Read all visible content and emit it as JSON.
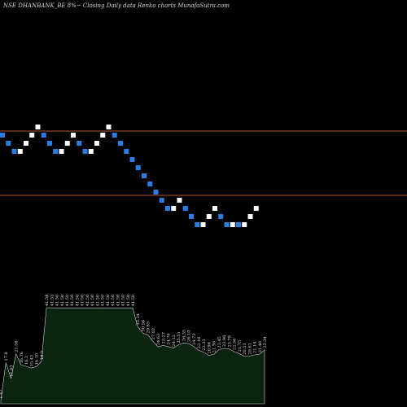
{
  "header": {
    "text": "NSE DHANBANK_BE 8%~  Closing Daily data  Renko  charts MunafaSutra.com"
  },
  "colors": {
    "background": "#000000",
    "up_brick": "#ffffff",
    "down_brick": "#2a7de1",
    "reference_line": "#b5562e",
    "volume_fill": "#0b2410",
    "volume_stroke": "#d0d0d0"
  },
  "chart_data": {
    "type": "renko",
    "title": "NSE DHANBANK_BE 8%~ Closing Daily data Renko charts MunafaSutra.com",
    "reference_lines": [
      45.8,
      37.9
    ],
    "ylim": [
      27.9,
      61.9
    ],
    "bricks": [
      {
        "dir": "down",
        "level": 45.3
      },
      {
        "dir": "down",
        "level": 44.3
      },
      {
        "dir": "down",
        "level": 43.3
      },
      {
        "dir": "up",
        "level": 43.3
      },
      {
        "dir": "up",
        "level": 44.3
      },
      {
        "dir": "up",
        "level": 45.3
      },
      {
        "dir": "up",
        "level": 46.3
      },
      {
        "dir": "down",
        "level": 45.3
      },
      {
        "dir": "down",
        "level": 44.3
      },
      {
        "dir": "down",
        "level": 43.3
      },
      {
        "dir": "up",
        "level": 43.3
      },
      {
        "dir": "up",
        "level": 44.3
      },
      {
        "dir": "up",
        "level": 45.3
      },
      {
        "dir": "down",
        "level": 44.3
      },
      {
        "dir": "down",
        "level": 43.3
      },
      {
        "dir": "up",
        "level": 43.3
      },
      {
        "dir": "up",
        "level": 44.3
      },
      {
        "dir": "up",
        "level": 45.3
      },
      {
        "dir": "up",
        "level": 46.3
      },
      {
        "dir": "down",
        "level": 45.3
      },
      {
        "dir": "down",
        "level": 44.3
      },
      {
        "dir": "down",
        "level": 43.3
      },
      {
        "dir": "down",
        "level": 42.3
      },
      {
        "dir": "down",
        "level": 41.3
      },
      {
        "dir": "down",
        "level": 40.3
      },
      {
        "dir": "down",
        "level": 39.3
      },
      {
        "dir": "down",
        "level": 38.3
      },
      {
        "dir": "down",
        "level": 37.3
      },
      {
        "dir": "down",
        "level": 36.3
      },
      {
        "dir": "up",
        "level": 36.3
      },
      {
        "dir": "up",
        "level": 37.3
      },
      {
        "dir": "down",
        "level": 36.3
      },
      {
        "dir": "down",
        "level": 35.3
      },
      {
        "dir": "down",
        "level": 34.3
      },
      {
        "dir": "up",
        "level": 34.3
      },
      {
        "dir": "up",
        "level": 35.3
      },
      {
        "dir": "up",
        "level": 36.3
      },
      {
        "dir": "down",
        "level": 35.3
      },
      {
        "dir": "down",
        "level": 34.3
      },
      {
        "dir": "up",
        "level": 34.3
      },
      {
        "dir": "down",
        "level": 34.3
      },
      {
        "dir": "up",
        "level": 34.3
      },
      {
        "dir": "up",
        "level": 35.3
      },
      {
        "dir": "up",
        "level": 36.3
      }
    ],
    "volume_labels": [
      "1.47",
      "17.8",
      "11.03",
      "21.56",
      "16.76",
      "16.2",
      "15.43",
      "16.10",
      "18.3",
      "41.58",
      "41.53",
      "41.50",
      "41.50",
      "41.50",
      "41.50",
      "41.50",
      "41.50",
      "41.50",
      "41.50",
      "41.50",
      "41.50",
      "41.50",
      "41.50",
      "41.50",
      "41.50",
      "41.50",
      "41.50",
      "33.34",
      "30.56",
      "29.85",
      "27.02",
      "24.63",
      "25.27",
      "24.76",
      "24.12",
      "25.51",
      "26.35",
      "26.10",
      "24.73",
      "23.18",
      "22.33",
      "20.96",
      "21.36",
      "23.45",
      "23.96",
      "23.79",
      "22.56",
      "21.75",
      "20.53",
      "20.61",
      "21.14",
      "21.46",
      "23.34"
    ]
  }
}
